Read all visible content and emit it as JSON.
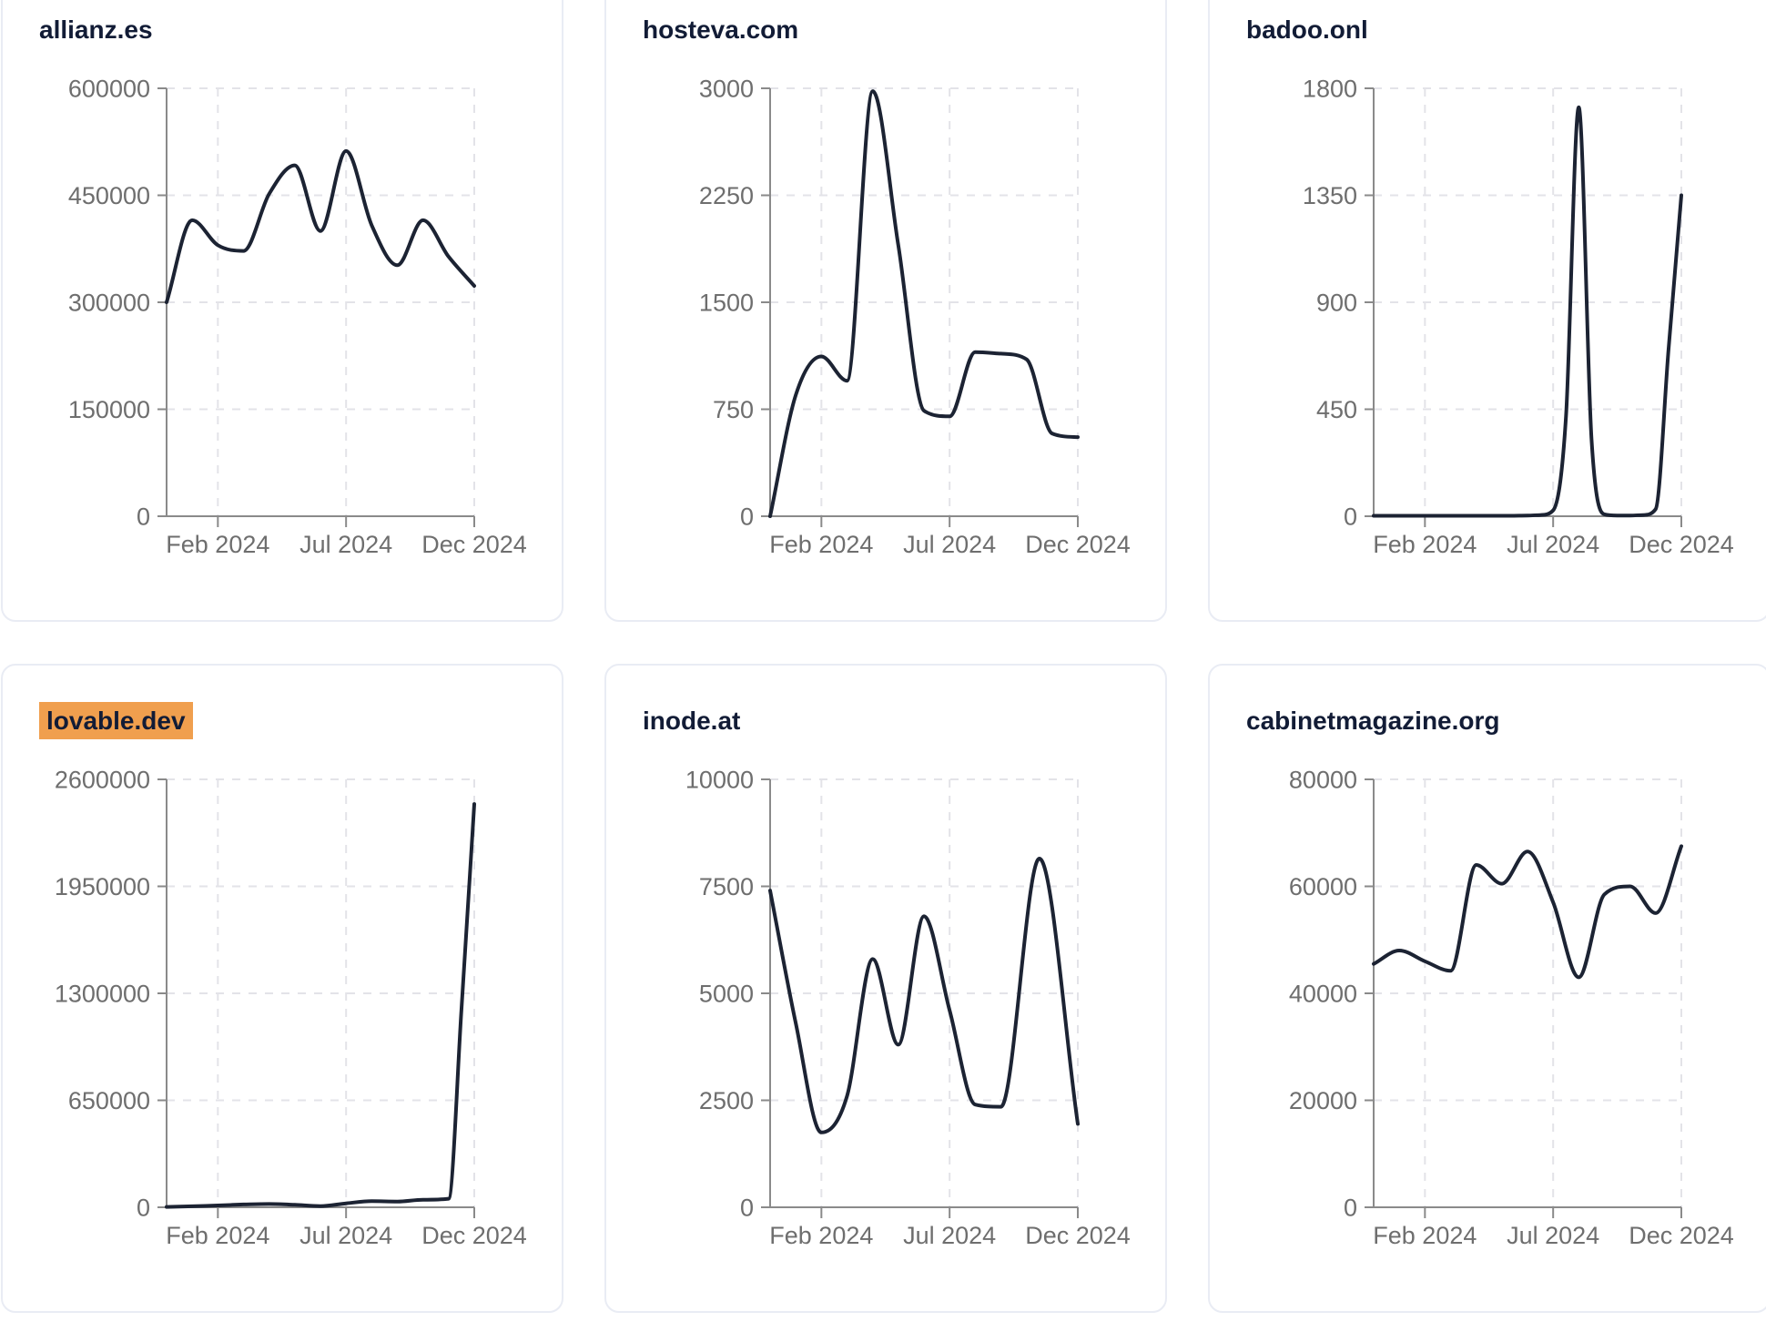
{
  "page": {
    "description": "Grid of six domain traffic sparkline cards",
    "x_tick_labels": [
      "Feb 2024",
      "Jul 2024",
      "Dec 2024"
    ]
  },
  "style": {
    "page_background": "#ffffff",
    "card_background": "#ffffff",
    "card_border_color": "#e9ecf4",
    "title_color": "#121c36",
    "label_color": "#6e6e6e",
    "axis_color": "#8a8a8a",
    "grid_color": "#e3e3e8",
    "line_color": "#1c2333",
    "highlight_background": "#f09f4e"
  },
  "chart_data": [
    {
      "type": "line",
      "title": "allianz.es",
      "highlighted": false,
      "ylim": [
        0,
        600000
      ],
      "yticks": [
        0,
        150000,
        300000,
        450000,
        600000
      ],
      "xticks": [
        {
          "month": 2,
          "label": "Feb 2024"
        },
        {
          "month": 7,
          "label": "Jul 2024"
        },
        {
          "month": 12,
          "label": "Dec 2024"
        }
      ],
      "x_unit": "months since Dec 2023",
      "points": [
        [
          0,
          300000
        ],
        [
          1,
          415000
        ],
        [
          2,
          380000
        ],
        [
          3,
          372000
        ],
        [
          4,
          452000
        ],
        [
          5,
          492000
        ],
        [
          6,
          400000
        ],
        [
          7,
          512000
        ],
        [
          8,
          408000
        ],
        [
          9,
          352000
        ],
        [
          10,
          415000
        ],
        [
          11,
          364000
        ],
        [
          12,
          323000
        ]
      ]
    },
    {
      "type": "line",
      "title": "hosteva.com",
      "highlighted": false,
      "ylim": [
        0,
        3000
      ],
      "yticks": [
        0,
        750,
        1500,
        2250,
        3000
      ],
      "xticks": [
        {
          "month": 2,
          "label": "Feb 2024"
        },
        {
          "month": 7,
          "label": "Jul 2024"
        },
        {
          "month": 12,
          "label": "Dec 2024"
        }
      ],
      "x_unit": "months since Dec 2023",
      "points": [
        [
          0,
          0
        ],
        [
          1,
          850
        ],
        [
          2,
          1120
        ],
        [
          3,
          950
        ],
        [
          4,
          2980
        ],
        [
          5,
          1900
        ],
        [
          6,
          740
        ],
        [
          7,
          700
        ],
        [
          8,
          1150
        ],
        [
          9,
          1140
        ],
        [
          10,
          1100
        ],
        [
          11,
          580
        ],
        [
          12,
          555
        ]
      ]
    },
    {
      "type": "line",
      "title": "badoo.onl",
      "highlighted": false,
      "ylim": [
        0,
        1800
      ],
      "yticks": [
        0,
        450,
        900,
        1350,
        1800
      ],
      "xticks": [
        {
          "month": 2,
          "label": "Feb 2024"
        },
        {
          "month": 7,
          "label": "Jul 2024"
        },
        {
          "month": 12,
          "label": "Dec 2024"
        }
      ],
      "x_unit": "months since Dec 2023",
      "points": [
        [
          0,
          2
        ],
        [
          1,
          2
        ],
        [
          2,
          2
        ],
        [
          3,
          2
        ],
        [
          4,
          2
        ],
        [
          5,
          2
        ],
        [
          6,
          3
        ],
        [
          6.5,
          5
        ],
        [
          7,
          25
        ],
        [
          7.5,
          420
        ],
        [
          8,
          1720
        ],
        [
          8.5,
          320
        ],
        [
          9,
          8
        ],
        [
          9.5,
          3
        ],
        [
          10,
          3
        ],
        [
          10.5,
          5
        ],
        [
          11,
          30
        ],
        [
          11.5,
          700
        ],
        [
          12,
          1350
        ]
      ]
    },
    {
      "type": "line",
      "title": "lovable.dev",
      "highlighted": true,
      "ylim": [
        0,
        2600000
      ],
      "yticks": [
        0,
        650000,
        1300000,
        1950000,
        2600000
      ],
      "xticks": [
        {
          "month": 2,
          "label": "Feb 2024"
        },
        {
          "month": 7,
          "label": "Jul 2024"
        },
        {
          "month": 12,
          "label": "Dec 2024"
        }
      ],
      "x_unit": "months since Dec 2023",
      "points": [
        [
          0,
          2000
        ],
        [
          1,
          6000
        ],
        [
          2,
          11000
        ],
        [
          3,
          17000
        ],
        [
          4,
          20000
        ],
        [
          5,
          15000
        ],
        [
          6,
          7000
        ],
        [
          7,
          24000
        ],
        [
          8,
          37000
        ],
        [
          9,
          35000
        ],
        [
          10,
          46000
        ],
        [
          11,
          52000
        ],
        [
          11.5,
          1200000
        ],
        [
          12,
          2450000
        ]
      ]
    },
    {
      "type": "line",
      "title": "inode.at",
      "highlighted": false,
      "ylim": [
        0,
        10000
      ],
      "yticks": [
        0,
        2500,
        5000,
        7500,
        10000
      ],
      "xticks": [
        {
          "month": 2,
          "label": "Feb 2024"
        },
        {
          "month": 7,
          "label": "Jul 2024"
        },
        {
          "month": 12,
          "label": "Dec 2024"
        }
      ],
      "x_unit": "months since Dec 2023",
      "points": [
        [
          0,
          7400
        ],
        [
          1,
          4300
        ],
        [
          2,
          1750
        ],
        [
          3,
          2600
        ],
        [
          4,
          5800
        ],
        [
          5,
          3800
        ],
        [
          6,
          6800
        ],
        [
          7,
          4600
        ],
        [
          8,
          2400
        ],
        [
          9,
          2350
        ],
        [
          10.5,
          8150
        ],
        [
          12,
          1950
        ]
      ]
    },
    {
      "type": "line",
      "title": "cabinetmagazine.org",
      "highlighted": false,
      "ylim": [
        0,
        80000
      ],
      "yticks": [
        0,
        20000,
        40000,
        60000,
        80000
      ],
      "xticks": [
        {
          "month": 2,
          "label": "Feb 2024"
        },
        {
          "month": 7,
          "label": "Jul 2024"
        },
        {
          "month": 12,
          "label": "Dec 2024"
        }
      ],
      "x_unit": "months since Dec 2023",
      "points": [
        [
          0,
          45500
        ],
        [
          1,
          48000
        ],
        [
          2,
          46000
        ],
        [
          3,
          44200
        ],
        [
          4,
          64000
        ],
        [
          5,
          60500
        ],
        [
          6,
          66500
        ],
        [
          7,
          57000
        ],
        [
          8,
          43000
        ],
        [
          9,
          58500
        ],
        [
          10,
          60000
        ],
        [
          11,
          55000
        ],
        [
          12,
          67500
        ]
      ]
    }
  ]
}
